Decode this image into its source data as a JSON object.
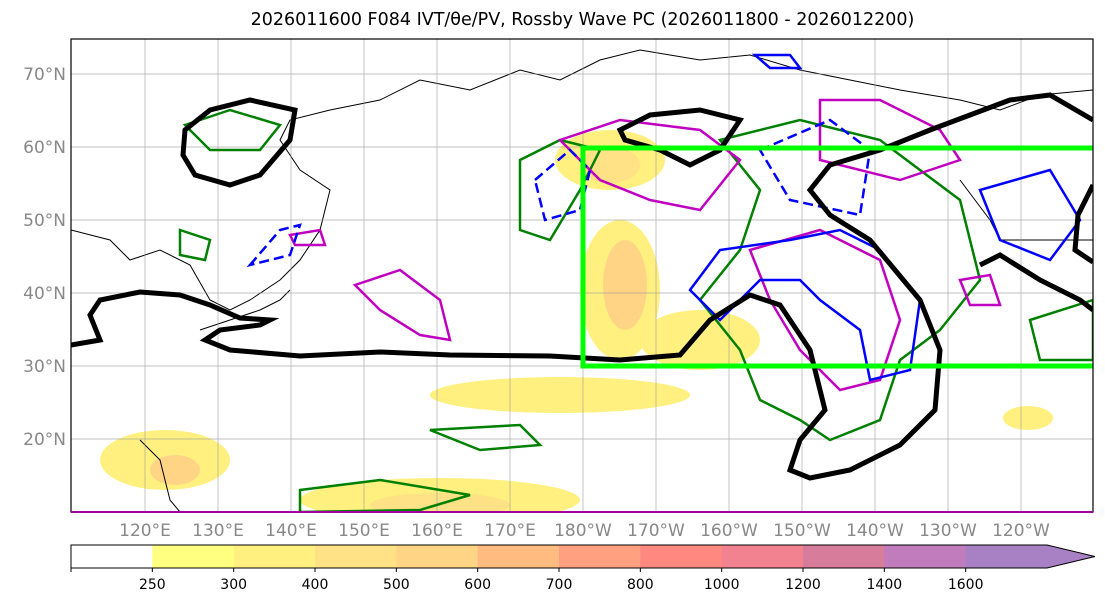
{
  "title": "2026011600 F084 IVT/θe/PV, Rossby Wave PC (2026011800 - 2026012200)",
  "chart_data": {
    "type": "map",
    "title": "2026011600 F084 IVT/θe/PV, Rossby Wave PC (2026011800 - 2026012200)",
    "lat_ticks": [
      {
        "value": 70,
        "label": "70°N"
      },
      {
        "value": 60,
        "label": "60°N"
      },
      {
        "value": 50,
        "label": "50°N"
      },
      {
        "value": 40,
        "label": "40°N"
      },
      {
        "value": 30,
        "label": "30°N"
      },
      {
        "value": 20,
        "label": "20°N"
      }
    ],
    "lon_ticks": [
      {
        "value": 120,
        "label": "120°E"
      },
      {
        "value": 130,
        "label": "130°E"
      },
      {
        "value": 140,
        "label": "140°E"
      },
      {
        "value": 150,
        "label": "150°E"
      },
      {
        "value": 160,
        "label": "160°E"
      },
      {
        "value": 170,
        "label": "170°E"
      },
      {
        "value": 180,
        "label": "180°W"
      },
      {
        "value": 190,
        "label": "170°W"
      },
      {
        "value": 200,
        "label": "160°W"
      },
      {
        "value": 210,
        "label": "150°W"
      },
      {
        "value": 220,
        "label": "140°W"
      },
      {
        "value": 230,
        "label": "130°W"
      },
      {
        "value": 240,
        "label": "120°W"
      }
    ],
    "lat_range": [
      10,
      75
    ],
    "lon_range": [
      109,
      250
    ],
    "colorbar": {
      "levels": [
        "250",
        "300",
        "400",
        "500",
        "600",
        "700",
        "800",
        "1000",
        "1200",
        "1400",
        "1600"
      ],
      "colors": [
        "#ffffff",
        "#ffff80",
        "#fff080",
        "#ffe285",
        "#ffd585",
        "#ffbb80",
        "#ffa080",
        "#ff8880",
        "#f28290",
        "#d87c9c",
        "#c07cbc",
        "#a880c4"
      ],
      "extend": "max"
    },
    "box": {
      "lat": [
        30,
        60
      ],
      "lon": [
        180,
        250
      ],
      "color": "#00ff00"
    }
  }
}
